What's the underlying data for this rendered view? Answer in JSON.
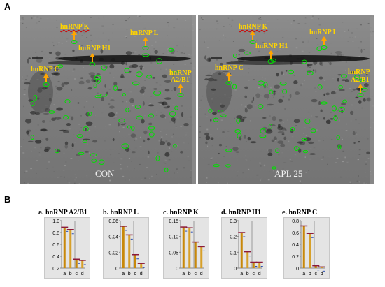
{
  "panel_a": {
    "letter": "A",
    "gels": [
      {
        "label": "CON",
        "proteins": [
          {
            "name": "hnRNP K",
            "wavy": true
          },
          {
            "name": "hnRNP L",
            "wavy": false
          },
          {
            "name": "hnRNP H1",
            "wavy": false
          },
          {
            "name": "hnRNP C",
            "wavy": false
          },
          {
            "name": "hnRNP",
            "wavy": false
          },
          {
            "name": "A2/B1",
            "wavy": false
          }
        ]
      },
      {
        "label": "APL 25",
        "proteins": [
          {
            "name": "hnRNP K",
            "wavy": true
          },
          {
            "name": "hnRNP L",
            "wavy": false
          },
          {
            "name": "hnRNP H1",
            "wavy": false
          },
          {
            "name": "hnRNP C",
            "wavy": false
          },
          {
            "name": "hnRNP",
            "wavy": false
          },
          {
            "name": "A2/B1",
            "wavy": false
          }
        ]
      }
    ],
    "colors": {
      "spot_outline": "#00e000",
      "label": "#ffd400",
      "arrow": "#ffa500"
    }
  },
  "panel_b": {
    "letter": "B"
  },
  "chart_data": [
    {
      "type": "bar",
      "title": "a. hnRNP A2/B1",
      "categories": [
        "a",
        "b",
        "c",
        "d"
      ],
      "values": [
        0.89,
        0.85,
        0.35,
        0.33
      ],
      "ylim": [
        0.2,
        1.0
      ],
      "ytick_labels": [
        "0.2",
        "0.4",
        "0.6",
        "0.8",
        "1.0"
      ]
    },
    {
      "type": "bar",
      "title": "b. hnRNP L",
      "categories": [
        "a",
        "b",
        "c",
        "d"
      ],
      "values": [
        0.053,
        0.042,
        0.017,
        0.006
      ],
      "ylim": [
        0,
        0.06
      ],
      "ytick_labels": [
        "0",
        "0.02",
        "0.04",
        "0.06"
      ]
    },
    {
      "type": "bar",
      "title": "c. hnRNP K",
      "categories": [
        "a",
        "b",
        "c",
        "d"
      ],
      "values": [
        0.104,
        0.102,
        0.066,
        0.054
      ],
      "ylim": [
        0,
        0.12
      ],
      "ytick_labels": [
        "0",
        "0.05",
        "0.10",
        "0.15"
      ]
    },
    {
      "type": "bar",
      "title": "d. hnRNP H1",
      "categories": [
        "a",
        "b",
        "c",
        "d"
      ],
      "values": [
        0.24,
        0.11,
        0.04,
        0.04
      ],
      "ylim": [
        0,
        0.32
      ],
      "ytick_labels": [
        "0",
        "0.1",
        "0.2",
        "0.3"
      ]
    },
    {
      "type": "bar",
      "title": "e. hnRNP C",
      "categories": [
        "a",
        "b",
        "c",
        "d"
      ],
      "values": [
        0.73,
        0.6,
        0.04,
        0.02
      ],
      "ylim": [
        0,
        0.82
      ],
      "ytick_labels": [
        "0",
        "0.2",
        "0.4",
        "0.6",
        "0.8"
      ]
    }
  ]
}
